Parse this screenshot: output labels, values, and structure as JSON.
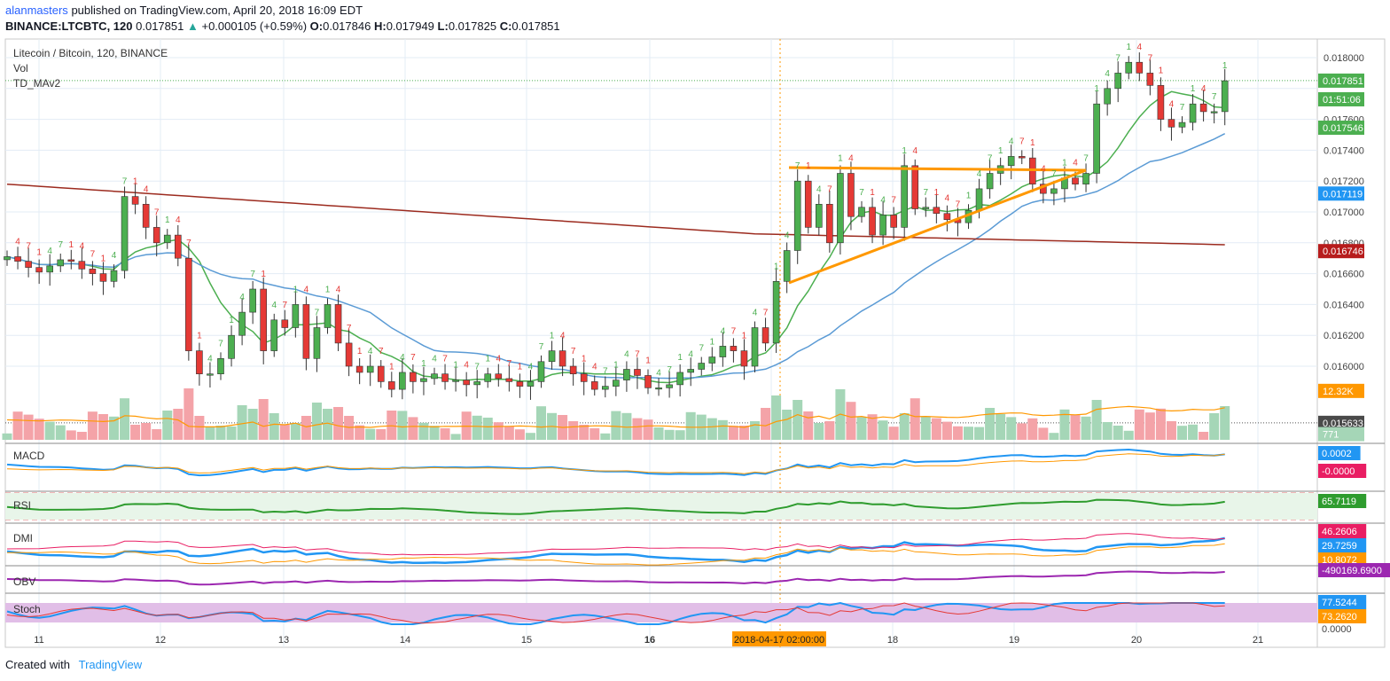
{
  "header": {
    "author": "alanmasters",
    "published_text": "published on TradingView.com, April 20, 2018 16:09 EDT",
    "symbol_line": "BINANCE:LTCBTC, 120",
    "last": "0.017851",
    "change": "+0.000105 (+0.59%)",
    "o_label": "O:",
    "o": "0.017846",
    "h_label": "H:",
    "h": "0.017949",
    "l_label": "L:",
    "l": "0.017825",
    "c_label": "C:",
    "c": "0.017851"
  },
  "pane_labels": {
    "title": "Litecoin / Bitcoin, 120, BINANCE",
    "vol": "Vol",
    "td": "TD_MAv2",
    "macd": "MACD",
    "rsi": "RSI",
    "dmi": "DMI",
    "obv": "OBV",
    "stoch": "Stoch"
  },
  "footer": {
    "created": "Created with",
    "brand": "TradingView"
  },
  "colors": {
    "up": "#4caf50",
    "down": "#e53935",
    "vol_up": "#a5d6b7",
    "vol_down": "#f4a3a8",
    "ma_fast": "#4caf50",
    "ma_mid": "#5b9bd5",
    "ma_slow": "#9c2b1f",
    "vol_ma": "#ff9800",
    "trendline": "#ff9800",
    "badge_blue": "#2196f3",
    "badge_green": "#4caf50",
    "badge_red": "#b71c1c"
  },
  "chart_data": {
    "type": "candlestick",
    "symbol": "Litecoin / Bitcoin, 120, BINANCE",
    "x_ticks": [
      "11",
      "12",
      "13",
      "14",
      "15",
      "16",
      "2018-04-17 02:00:00",
      "18",
      "19",
      "20",
      "21"
    ],
    "y_ticks": [
      "0.018000",
      "0.017600",
      "0.017400",
      "0.017200",
      "0.017000",
      "0.016800",
      "0.016600",
      "0.016400",
      "0.016200",
      "0.016000"
    ],
    "ylim": [
      0.01556,
      0.01814
    ],
    "price_markers": [
      {
        "label": "0.017851",
        "value": 0.017851,
        "color": "#4caf50"
      },
      {
        "label": "01:51:06",
        "value": 0.01773,
        "color": "#4caf50"
      },
      {
        "label": "0.017546",
        "value": 0.017546,
        "color": "#4caf50"
      },
      {
        "label": "0.017119",
        "value": 0.017119,
        "color": "#2196f3"
      },
      {
        "label": "0.016746",
        "value": 0.016746,
        "color": "#b71c1c"
      },
      {
        "label": "12.32K",
        "value": 0.01584,
        "color": "#ff9800"
      },
      {
        "label": "0.015633",
        "value": 0.015633,
        "color": "#4a4a4a"
      },
      {
        "label": "771",
        "value": 0.01556,
        "color": "#a5d6b7"
      }
    ],
    "candles_close": [
      0.01671,
      0.01668,
      0.01664,
      0.01661,
      0.01665,
      0.01669,
      0.01668,
      0.01663,
      0.0166,
      0.01655,
      0.01662,
      0.0171,
      0.01705,
      0.0169,
      0.0168,
      0.01685,
      0.0167,
      0.0161,
      0.01595,
      0.01595,
      0.01605,
      0.0162,
      0.01635,
      0.0165,
      0.0161,
      0.0163,
      0.01625,
      0.0164,
      0.01605,
      0.01625,
      0.0164,
      0.01615,
      0.016,
      0.01596,
      0.016,
      0.0159,
      0.01585,
      0.01596,
      0.0159,
      0.01592,
      0.01595,
      0.0159,
      0.01591,
      0.01588,
      0.0159,
      0.01595,
      0.01592,
      0.0159,
      0.01587,
      0.0159,
      0.01603,
      0.0161,
      0.016,
      0.01595,
      0.0159,
      0.01585,
      0.01587,
      0.01591,
      0.01598,
      0.01594,
      0.01586,
      0.01586,
      0.01588,
      0.01596,
      0.01598,
      0.01602,
      0.01606,
      0.01613,
      0.0161,
      0.016,
      0.01625,
      0.01615,
      0.01655,
      0.01675,
      0.0172,
      0.0169,
      0.01705,
      0.0168,
      0.01725,
      0.01697,
      0.01703,
      0.01685,
      0.01698,
      0.0169,
      0.0173,
      0.01702,
      0.01703,
      0.01699,
      0.01695,
      0.01693,
      0.01701,
      0.01715,
      0.01725,
      0.0173,
      0.01736,
      0.01735,
      0.01718,
      0.01712,
      0.01715,
      0.01722,
      0.01718,
      0.01725,
      0.0177,
      0.0178,
      0.0179,
      0.01797,
      0.0179,
      0.01782,
      0.0176,
      0.01755,
      0.01758,
      0.0177,
      0.01765,
      0.01765,
      0.01785
    ]
  },
  "indicators": {
    "macd_labels": [
      "0.0002",
      "-0.0000"
    ],
    "rsi_label": "65.7119",
    "dmi_labels": [
      "46.2606",
      "29.7259",
      "10.8072"
    ],
    "obv_label": "-490169.6900",
    "stoch_labels": [
      "77.5244",
      "73.2620",
      "0.0000"
    ]
  }
}
